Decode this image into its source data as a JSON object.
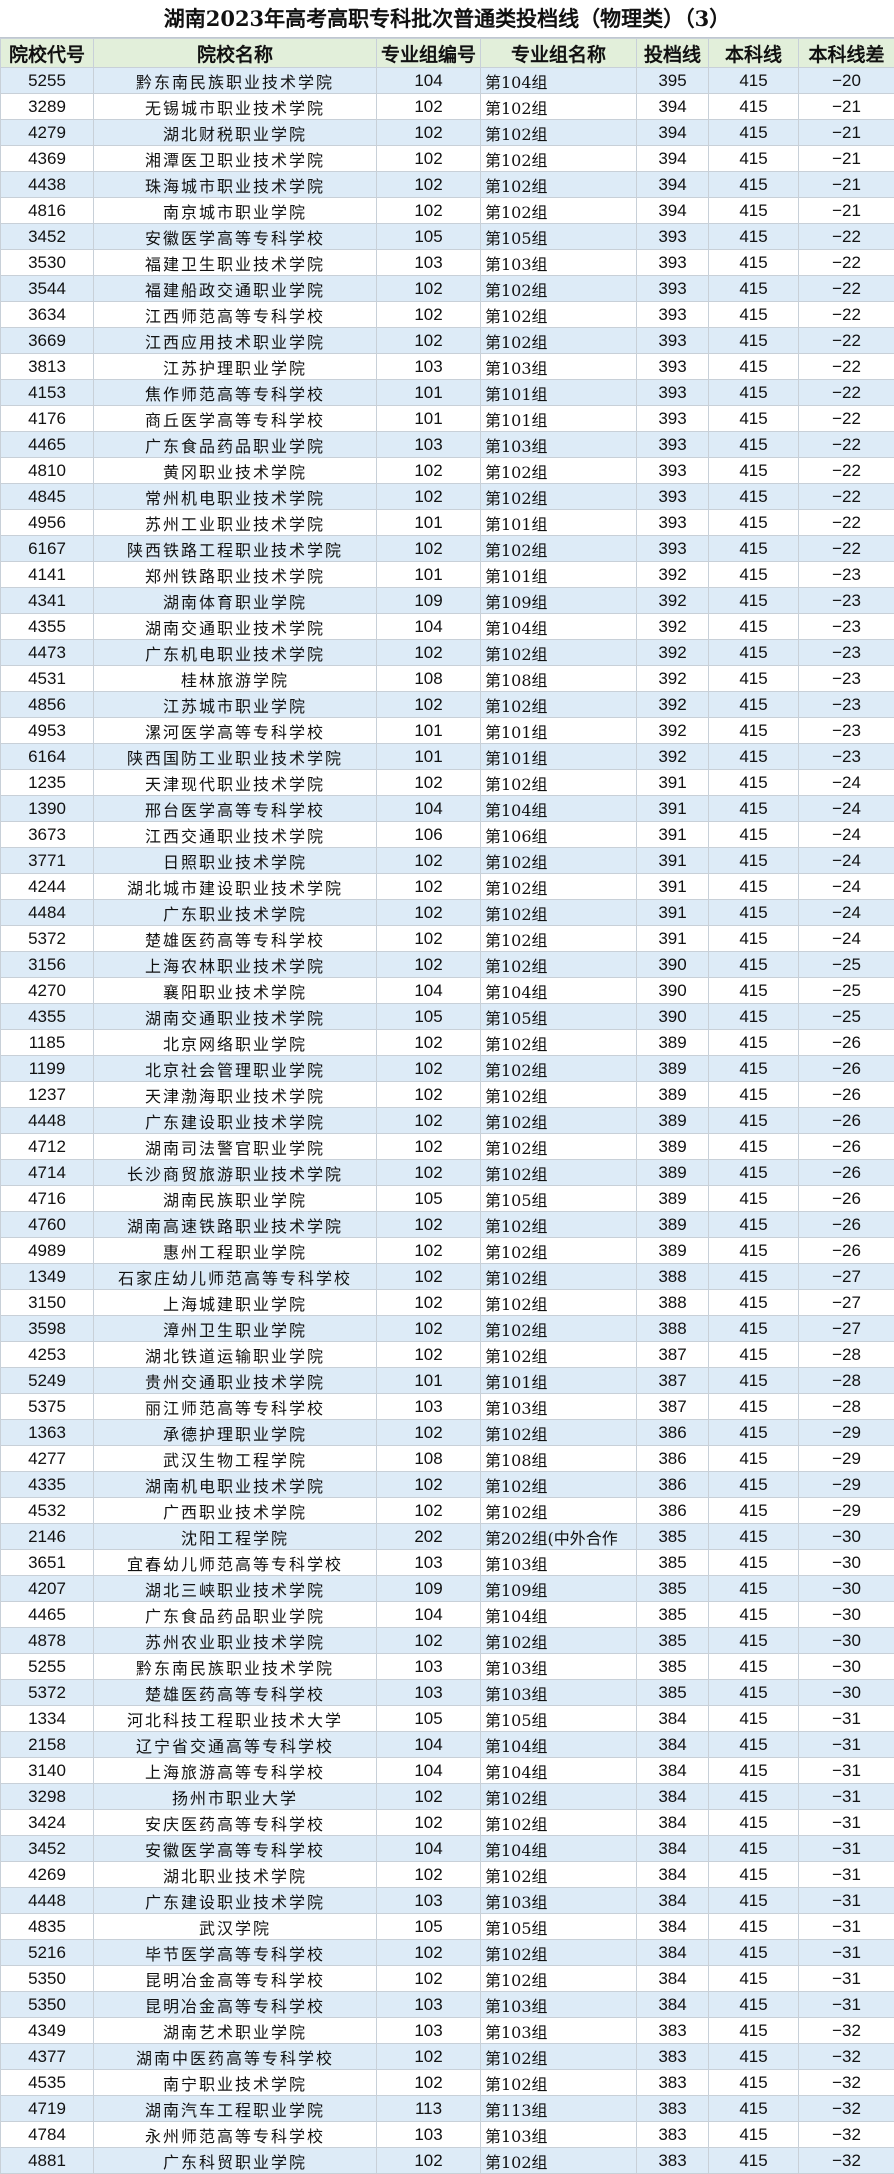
{
  "title": "湖南2023年高考高职专科批次普通类投档线（物理类）（3）",
  "colors": {
    "header_bg": "#e2efda",
    "stripe_bg": "#ddebf7"
  },
  "columns": [
    "院校代号",
    "院校名称",
    "专业组编号",
    "专业组名称",
    "投档线",
    "本科线",
    "本科线差"
  ],
  "rows": [
    [
      "5255",
      "黔东南民族职业技术学院",
      "104",
      "第104组",
      "395",
      "415",
      "−20"
    ],
    [
      "3289",
      "无锡城市职业技术学院",
      "102",
      "第102组",
      "394",
      "415",
      "−21"
    ],
    [
      "4279",
      "湖北财税职业学院",
      "102",
      "第102组",
      "394",
      "415",
      "−21"
    ],
    [
      "4369",
      "湘潭医卫职业技术学院",
      "102",
      "第102组",
      "394",
      "415",
      "−21"
    ],
    [
      "4438",
      "珠海城市职业技术学院",
      "102",
      "第102组",
      "394",
      "415",
      "−21"
    ],
    [
      "4816",
      "南京城市职业学院",
      "102",
      "第102组",
      "394",
      "415",
      "−21"
    ],
    [
      "3452",
      "安徽医学高等专科学校",
      "105",
      "第105组",
      "393",
      "415",
      "−22"
    ],
    [
      "3530",
      "福建卫生职业技术学院",
      "103",
      "第103组",
      "393",
      "415",
      "−22"
    ],
    [
      "3544",
      "福建船政交通职业学院",
      "102",
      "第102组",
      "393",
      "415",
      "−22"
    ],
    [
      "3634",
      "江西师范高等专科学校",
      "102",
      "第102组",
      "393",
      "415",
      "−22"
    ],
    [
      "3669",
      "江西应用技术职业学院",
      "102",
      "第102组",
      "393",
      "415",
      "−22"
    ],
    [
      "3813",
      "江苏护理职业学院",
      "103",
      "第103组",
      "393",
      "415",
      "−22"
    ],
    [
      "4153",
      "焦作师范高等专科学校",
      "101",
      "第101组",
      "393",
      "415",
      "−22"
    ],
    [
      "4176",
      "商丘医学高等专科学校",
      "101",
      "第101组",
      "393",
      "415",
      "−22"
    ],
    [
      "4465",
      "广东食品药品职业学院",
      "103",
      "第103组",
      "393",
      "415",
      "−22"
    ],
    [
      "4810",
      "黄冈职业技术学院",
      "102",
      "第102组",
      "393",
      "415",
      "−22"
    ],
    [
      "4845",
      "常州机电职业技术学院",
      "102",
      "第102组",
      "393",
      "415",
      "−22"
    ],
    [
      "4956",
      "苏州工业职业技术学院",
      "101",
      "第101组",
      "393",
      "415",
      "−22"
    ],
    [
      "6167",
      "陕西铁路工程职业技术学院",
      "102",
      "第102组",
      "393",
      "415",
      "−22"
    ],
    [
      "4141",
      "郑州铁路职业技术学院",
      "101",
      "第101组",
      "392",
      "415",
      "−23"
    ],
    [
      "4341",
      "湖南体育职业学院",
      "109",
      "第109组",
      "392",
      "415",
      "−23"
    ],
    [
      "4355",
      "湖南交通职业技术学院",
      "104",
      "第104组",
      "392",
      "415",
      "−23"
    ],
    [
      "4473",
      "广东机电职业技术学院",
      "102",
      "第102组",
      "392",
      "415",
      "−23"
    ],
    [
      "4531",
      "桂林旅游学院",
      "108",
      "第108组",
      "392",
      "415",
      "−23"
    ],
    [
      "4856",
      "江苏城市职业学院",
      "102",
      "第102组",
      "392",
      "415",
      "−23"
    ],
    [
      "4953",
      "漯河医学高等专科学校",
      "101",
      "第101组",
      "392",
      "415",
      "−23"
    ],
    [
      "6164",
      "陕西国防工业职业技术学院",
      "101",
      "第101组",
      "392",
      "415",
      "−23"
    ],
    [
      "1235",
      "天津现代职业技术学院",
      "102",
      "第102组",
      "391",
      "415",
      "−24"
    ],
    [
      "1390",
      "邢台医学高等专科学校",
      "104",
      "第104组",
      "391",
      "415",
      "−24"
    ],
    [
      "3673",
      "江西交通职业技术学院",
      "106",
      "第106组",
      "391",
      "415",
      "−24"
    ],
    [
      "3771",
      "日照职业技术学院",
      "102",
      "第102组",
      "391",
      "415",
      "−24"
    ],
    [
      "4244",
      "湖北城市建设职业技术学院",
      "102",
      "第102组",
      "391",
      "415",
      "−24"
    ],
    [
      "4484",
      "广东职业技术学院",
      "102",
      "第102组",
      "391",
      "415",
      "−24"
    ],
    [
      "5372",
      "楚雄医药高等专科学校",
      "102",
      "第102组",
      "391",
      "415",
      "−24"
    ],
    [
      "3156",
      "上海农林职业技术学院",
      "102",
      "第102组",
      "390",
      "415",
      "−25"
    ],
    [
      "4270",
      "襄阳职业技术学院",
      "104",
      "第104组",
      "390",
      "415",
      "−25"
    ],
    [
      "4355",
      "湖南交通职业技术学院",
      "105",
      "第105组",
      "390",
      "415",
      "−25"
    ],
    [
      "1185",
      "北京网络职业学院",
      "102",
      "第102组",
      "389",
      "415",
      "−26"
    ],
    [
      "1199",
      "北京社会管理职业学院",
      "102",
      "第102组",
      "389",
      "415",
      "−26"
    ],
    [
      "1237",
      "天津渤海职业技术学院",
      "102",
      "第102组",
      "389",
      "415",
      "−26"
    ],
    [
      "4448",
      "广东建设职业技术学院",
      "102",
      "第102组",
      "389",
      "415",
      "−26"
    ],
    [
      "4712",
      "湖南司法警官职业学院",
      "102",
      "第102组",
      "389",
      "415",
      "−26"
    ],
    [
      "4714",
      "长沙商贸旅游职业技术学院",
      "102",
      "第102组",
      "389",
      "415",
      "−26"
    ],
    [
      "4716",
      "湖南民族职业学院",
      "105",
      "第105组",
      "389",
      "415",
      "−26"
    ],
    [
      "4760",
      "湖南高速铁路职业技术学院",
      "102",
      "第102组",
      "389",
      "415",
      "−26"
    ],
    [
      "4989",
      "惠州工程职业学院",
      "102",
      "第102组",
      "389",
      "415",
      "−26"
    ],
    [
      "1349",
      "石家庄幼儿师范高等专科学校",
      "102",
      "第102组",
      "388",
      "415",
      "−27"
    ],
    [
      "3150",
      "上海城建职业学院",
      "102",
      "第102组",
      "388",
      "415",
      "−27"
    ],
    [
      "3598",
      "漳州卫生职业学院",
      "102",
      "第102组",
      "388",
      "415",
      "−27"
    ],
    [
      "4253",
      "湖北铁道运输职业学院",
      "102",
      "第102组",
      "387",
      "415",
      "−28"
    ],
    [
      "5249",
      "贵州交通职业技术学院",
      "101",
      "第101组",
      "387",
      "415",
      "−28"
    ],
    [
      "5375",
      "丽江师范高等专科学校",
      "103",
      "第103组",
      "387",
      "415",
      "−28"
    ],
    [
      "1363",
      "承德护理职业学院",
      "102",
      "第102组",
      "386",
      "415",
      "−29"
    ],
    [
      "4277",
      "武汉生物工程学院",
      "108",
      "第108组",
      "386",
      "415",
      "−29"
    ],
    [
      "4335",
      "湖南机电职业技术学院",
      "102",
      "第102组",
      "386",
      "415",
      "−29"
    ],
    [
      "4532",
      "广西职业技术学院",
      "102",
      "第102组",
      "386",
      "415",
      "−29"
    ],
    [
      "2146",
      "沈阳工程学院",
      "202",
      "第202组(中外合作",
      "385",
      "415",
      "−30"
    ],
    [
      "3651",
      "宜春幼儿师范高等专科学校",
      "103",
      "第103组",
      "385",
      "415",
      "−30"
    ],
    [
      "4207",
      "湖北三峡职业技术学院",
      "109",
      "第109组",
      "385",
      "415",
      "−30"
    ],
    [
      "4465",
      "广东食品药品职业学院",
      "104",
      "第104组",
      "385",
      "415",
      "−30"
    ],
    [
      "4878",
      "苏州农业职业技术学院",
      "102",
      "第102组",
      "385",
      "415",
      "−30"
    ],
    [
      "5255",
      "黔东南民族职业技术学院",
      "103",
      "第103组",
      "385",
      "415",
      "−30"
    ],
    [
      "5372",
      "楚雄医药高等专科学校",
      "103",
      "第103组",
      "385",
      "415",
      "−30"
    ],
    [
      "1334",
      "河北科技工程职业技术大学",
      "105",
      "第105组",
      "384",
      "415",
      "−31"
    ],
    [
      "2158",
      "辽宁省交通高等专科学校",
      "104",
      "第104组",
      "384",
      "415",
      "−31"
    ],
    [
      "3140",
      "上海旅游高等专科学校",
      "104",
      "第104组",
      "384",
      "415",
      "−31"
    ],
    [
      "3298",
      "扬州市职业大学",
      "102",
      "第102组",
      "384",
      "415",
      "−31"
    ],
    [
      "3424",
      "安庆医药高等专科学校",
      "102",
      "第102组",
      "384",
      "415",
      "−31"
    ],
    [
      "3452",
      "安徽医学高等专科学校",
      "104",
      "第104组",
      "384",
      "415",
      "−31"
    ],
    [
      "4269",
      "湖北职业技术学院",
      "102",
      "第102组",
      "384",
      "415",
      "−31"
    ],
    [
      "4448",
      "广东建设职业技术学院",
      "103",
      "第103组",
      "384",
      "415",
      "−31"
    ],
    [
      "4835",
      "武汉学院",
      "105",
      "第105组",
      "384",
      "415",
      "−31"
    ],
    [
      "5216",
      "毕节医学高等专科学校",
      "102",
      "第102组",
      "384",
      "415",
      "−31"
    ],
    [
      "5350",
      "昆明冶金高等专科学校",
      "102",
      "第102组",
      "384",
      "415",
      "−31"
    ],
    [
      "5350",
      "昆明冶金高等专科学校",
      "103",
      "第103组",
      "384",
      "415",
      "−31"
    ],
    [
      "4349",
      "湖南艺术职业学院",
      "103",
      "第103组",
      "383",
      "415",
      "−32"
    ],
    [
      "4377",
      "湖南中医药高等专科学校",
      "102",
      "第102组",
      "383",
      "415",
      "−32"
    ],
    [
      "4535",
      "南宁职业技术学院",
      "102",
      "第102组",
      "383",
      "415",
      "−32"
    ],
    [
      "4719",
      "湖南汽车工程职业学院",
      "113",
      "第113组",
      "383",
      "415",
      "−32"
    ],
    [
      "4784",
      "永州师范高等专科学校",
      "103",
      "第103组",
      "383",
      "415",
      "−32"
    ],
    [
      "4881",
      "广东科贸职业学院",
      "102",
      "第102组",
      "383",
      "415",
      "−32"
    ]
  ]
}
